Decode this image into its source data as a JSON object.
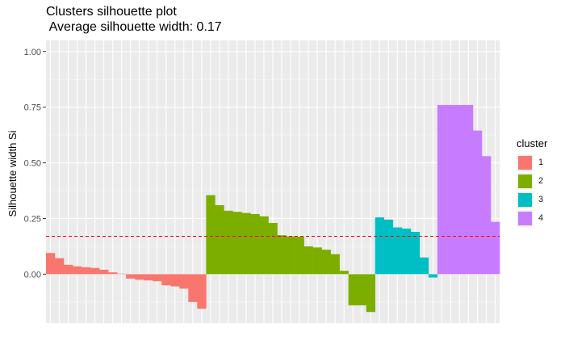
{
  "chart_data": {
    "type": "bar",
    "title": "Clusters silhouette plot",
    "subtitle": " Average silhouette width: 0.17",
    "xlabel": "",
    "ylabel": "Silhouette width Si",
    "ylim": [
      -0.22,
      1.05
    ],
    "yticks": [
      "0.00",
      "0.25",
      "0.50",
      "0.75",
      "1.00"
    ],
    "grid": true,
    "legend_title": "cluster",
    "legend_placement": "right",
    "average_line": 0.17,
    "average_line_color": "#ff0000",
    "panel_bg": "#ebebeb",
    "series": [
      {
        "name": "1",
        "color": "#f8766d",
        "values": [
          0.095,
          0.072,
          0.042,
          0.035,
          0.031,
          0.028,
          0.02,
          0.008,
          0.002,
          -0.02,
          -0.025,
          -0.028,
          -0.032,
          -0.05,
          -0.055,
          -0.065,
          -0.125,
          -0.155
        ]
      },
      {
        "name": "2",
        "color": "#7cae00",
        "values": [
          0.355,
          0.31,
          0.285,
          0.28,
          0.275,
          0.27,
          0.26,
          0.23,
          0.175,
          0.17,
          0.168,
          0.125,
          0.12,
          0.11,
          0.09,
          0.015,
          -0.14,
          -0.14,
          -0.17
        ]
      },
      {
        "name": "3",
        "color": "#00bfc4",
        "values": [
          0.255,
          0.245,
          0.21,
          0.205,
          0.19,
          0.075,
          -0.015
        ]
      },
      {
        "name": "4",
        "color": "#c77cff",
        "values": [
          0.76,
          0.76,
          0.76,
          0.76,
          0.645,
          0.53,
          0.235
        ]
      }
    ]
  }
}
